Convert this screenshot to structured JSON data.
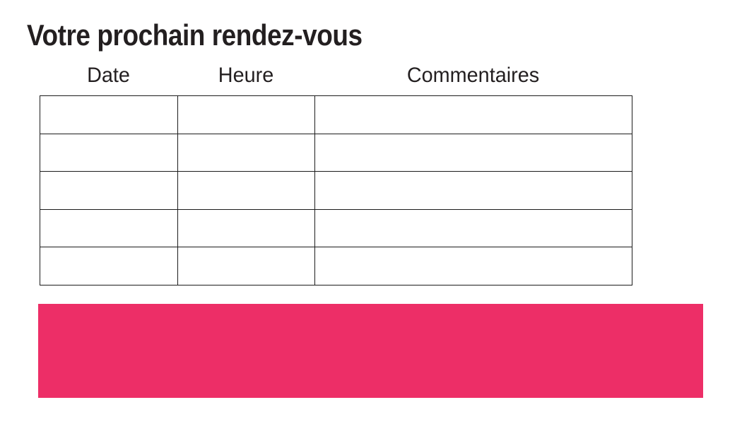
{
  "title": "Votre prochain rendez-vous",
  "table": {
    "headers": [
      "Date",
      "Heure",
      "Commentaires"
    ],
    "rows": [
      [
        "",
        "",
        ""
      ],
      [
        "",
        "",
        ""
      ],
      [
        "",
        "",
        ""
      ],
      [
        "",
        "",
        ""
      ],
      [
        "",
        "",
        ""
      ]
    ]
  },
  "banner": {
    "color": "#ED2E67"
  },
  "colors": {
    "background": "#FFFFFF",
    "text": "#231F20",
    "table_border": "#1C1C1C"
  }
}
